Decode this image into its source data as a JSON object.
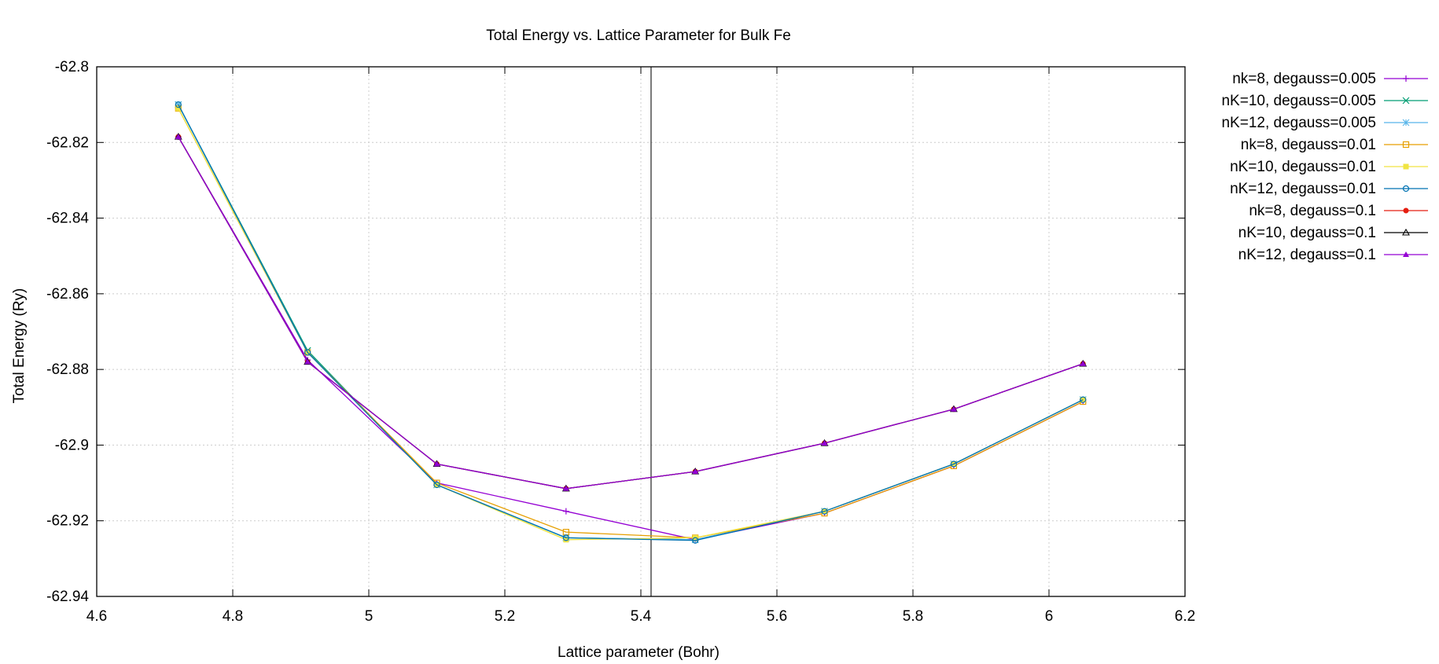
{
  "chart_data": {
    "type": "line",
    "title": "Total Energy vs. Lattice Parameter for Bulk Fe",
    "xlabel": "Lattice parameter (Bohr)",
    "ylabel": "Total Energy (Ry)",
    "xlim": [
      4.6,
      6.2
    ],
    "ylim": [
      -62.94,
      -62.8
    ],
    "xticks": [
      4.6,
      4.8,
      5.0,
      5.2,
      5.4,
      5.6,
      5.8,
      6.0,
      6.2
    ],
    "xtick_labels": [
      "4.6",
      "4.8",
      "5",
      "5.2",
      "5.4",
      "5.6",
      "5.8",
      "6",
      "6.2"
    ],
    "yticks": [
      -62.94,
      -62.92,
      -62.9,
      -62.88,
      -62.86,
      -62.84,
      -62.82,
      -62.8
    ],
    "ytick_labels": [
      "-62.94",
      "-62.92",
      "-62.9",
      "-62.88",
      "-62.86",
      "-62.84",
      "-62.82",
      "-62.8"
    ],
    "grid": true,
    "legend_position": "outside-right",
    "vertical_line_x": 5.415,
    "series": [
      {
        "name": "nk=8, degauss=0.005",
        "color": "#9400d3",
        "marker": "plus",
        "x": [
          4.72,
          4.91,
          5.1,
          5.29,
          5.48,
          5.67,
          5.86,
          6.05
        ],
        "y": [
          -62.8185,
          -62.8775,
          -62.91,
          -62.9175,
          -62.925,
          -62.918,
          -62.9055,
          -62.8885
        ]
      },
      {
        "name": "nK=10, degauss=0.005",
        "color": "#009e73",
        "marker": "cross",
        "x": [
          4.72,
          4.91,
          5.1,
          5.29,
          5.48,
          5.67,
          5.86,
          6.05
        ],
        "y": [
          -62.81,
          -62.875,
          -62.9105,
          -62.9245,
          -62.925,
          -62.9175,
          -62.905,
          -62.888
        ]
      },
      {
        "name": "nK=12, degauss=0.005",
        "color": "#56b4e9",
        "marker": "star",
        "x": [
          4.72,
          4.91,
          5.1,
          5.29,
          5.48,
          5.67,
          5.86,
          6.05
        ],
        "y": [
          -62.81,
          -62.8755,
          -62.9105,
          -62.9245,
          -62.925,
          -62.9175,
          -62.905,
          -62.888
        ]
      },
      {
        "name": "nk=8, degauss=0.01",
        "color": "#e69f00",
        "marker": "square-open",
        "x": [
          4.72,
          4.91,
          5.1,
          5.29,
          5.48,
          5.67,
          5.86,
          6.05
        ],
        "y": [
          -62.811,
          -62.8755,
          -62.91,
          -62.923,
          -62.9245,
          -62.918,
          -62.9055,
          -62.8885
        ]
      },
      {
        "name": "nK=10, degauss=0.01",
        "color": "#f0e442",
        "marker": "square-filled",
        "x": [
          4.72,
          4.91,
          5.1,
          5.29,
          5.48,
          5.67,
          5.86,
          6.05
        ],
        "y": [
          -62.811,
          -62.8755,
          -62.9105,
          -62.925,
          -62.9245,
          -62.9175,
          -62.905,
          -62.888
        ]
      },
      {
        "name": "nK=12, degauss=0.01",
        "color": "#0072b2",
        "marker": "circle-open",
        "x": [
          4.72,
          4.91,
          5.1,
          5.29,
          5.48,
          5.67,
          5.86,
          6.05
        ],
        "y": [
          -62.81,
          -62.8755,
          -62.9105,
          -62.9245,
          -62.9252,
          -62.9175,
          -62.905,
          -62.888
        ]
      },
      {
        "name": "nk=8, degauss=0.1",
        "color": "#e51e10",
        "marker": "circle-filled",
        "x": [
          4.72,
          4.91,
          5.1,
          5.29,
          5.48,
          5.67,
          5.86,
          6.05
        ],
        "y": [
          -62.8185,
          -62.878,
          -62.905,
          -62.9115,
          -62.907,
          -62.8995,
          -62.8905,
          -62.8785
        ]
      },
      {
        "name": "nK=10, degauss=0.1",
        "color": "#000000",
        "marker": "triangle-open",
        "x": [
          4.72,
          4.91,
          5.1,
          5.29,
          5.48,
          5.67,
          5.86,
          6.05
        ],
        "y": [
          -62.8185,
          -62.878,
          -62.905,
          -62.9115,
          -62.907,
          -62.8995,
          -62.8905,
          -62.8785
        ]
      },
      {
        "name": "nK=12, degauss=0.1",
        "color": "#9400d3",
        "marker": "triangle-filled",
        "x": [
          4.72,
          4.91,
          5.1,
          5.29,
          5.48,
          5.67,
          5.86,
          6.05
        ],
        "y": [
          -62.8185,
          -62.878,
          -62.905,
          -62.9115,
          -62.907,
          -62.8995,
          -62.8905,
          -62.8785
        ]
      }
    ]
  }
}
